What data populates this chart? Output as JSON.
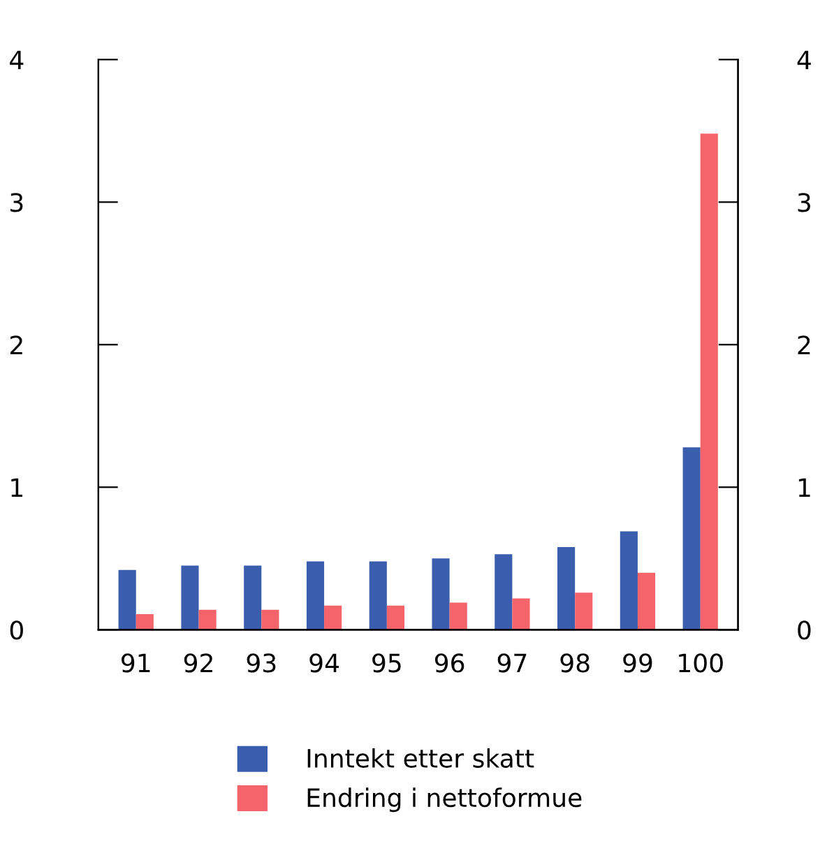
{
  "chart_data": {
    "type": "bar",
    "categories": [
      "91",
      "92",
      "93",
      "94",
      "95",
      "96",
      "97",
      "98",
      "99",
      "100"
    ],
    "series": [
      {
        "name": "Inntekt etter skatt",
        "color": "#3a5dae",
        "values": [
          0.42,
          0.45,
          0.45,
          0.48,
          0.48,
          0.5,
          0.53,
          0.58,
          0.69,
          1.28
        ]
      },
      {
        "name": "Endring i nettoformue",
        "color": "#f4646a",
        "values": [
          0.11,
          0.14,
          0.14,
          0.17,
          0.17,
          0.19,
          0.22,
          0.26,
          0.4,
          3.48
        ]
      }
    ],
    "ylim": [
      0,
      4
    ],
    "yticks": [
      0,
      1,
      2,
      3,
      4
    ],
    "y2lim": [
      0,
      4
    ],
    "y2ticks": [
      0,
      1,
      2,
      3,
      4
    ],
    "grid": false,
    "legend": "bottom"
  }
}
